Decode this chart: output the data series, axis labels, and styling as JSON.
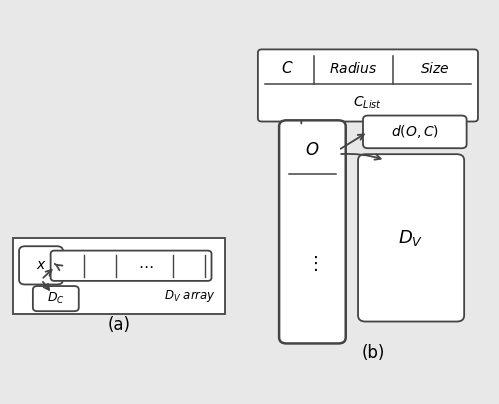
{
  "bg_color": "#e8e8e8",
  "box_color": "white",
  "border_color": "#444444",
  "text_color": "black",
  "label_a": "(a)",
  "label_b": "(b)",
  "lw": 1.3
}
